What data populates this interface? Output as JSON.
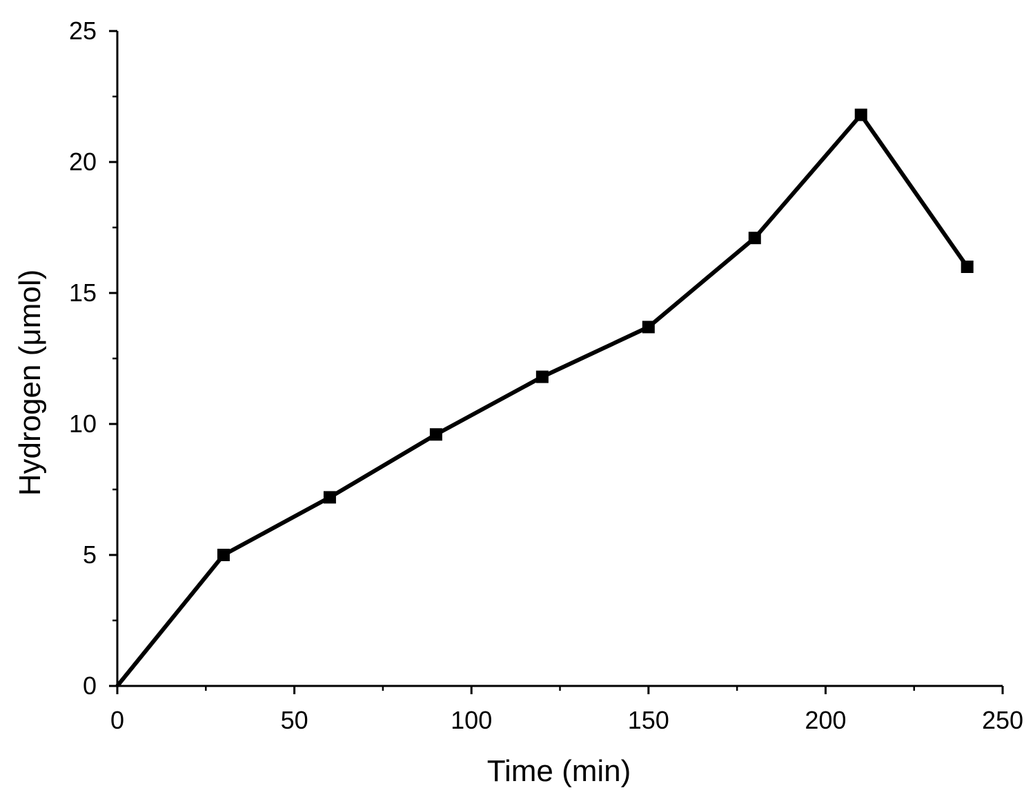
{
  "chart_data": {
    "type": "line",
    "title": "",
    "xlabel": "Time (min)",
    "ylabel": "Hydrogen (μmol)",
    "xlim": [
      0,
      250
    ],
    "ylim": [
      0,
      25
    ],
    "grid": false,
    "x_ticks": [
      0,
      50,
      100,
      150,
      200,
      250
    ],
    "x_minor_ticks": [
      25,
      75,
      125,
      175,
      225
    ],
    "y_ticks": [
      0,
      5,
      10,
      15,
      20,
      25
    ],
    "y_minor_ticks": [
      2.5,
      7.5,
      12.5,
      17.5,
      22.5
    ],
    "series": [
      {
        "marker": "square",
        "color": "#000000",
        "points": [
          {
            "x": 0,
            "y": 0
          },
          {
            "x": 30,
            "y": 5.0
          },
          {
            "x": 60,
            "y": 7.2
          },
          {
            "x": 90,
            "y": 9.6
          },
          {
            "x": 120,
            "y": 11.8
          },
          {
            "x": 150,
            "y": 13.7
          },
          {
            "x": 180,
            "y": 17.1
          },
          {
            "x": 210,
            "y": 21.8
          },
          {
            "x": 240,
            "y": 16.0
          }
        ]
      }
    ]
  }
}
